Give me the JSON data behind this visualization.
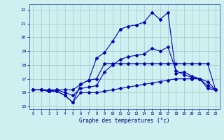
{
  "xlabel": "Graphe des températures (°c)",
  "bg_color": "#cff0f0",
  "line_color": "#0000bb",
  "xlim": [
    -0.5,
    23.5
  ],
  "ylim": [
    14.8,
    22.4
  ],
  "xticks": [
    0,
    1,
    2,
    3,
    4,
    5,
    6,
    7,
    8,
    9,
    10,
    11,
    12,
    13,
    14,
    15,
    16,
    17,
    18,
    19,
    20,
    21,
    22,
    23
  ],
  "yticks": [
    15,
    16,
    17,
    18,
    19,
    20,
    21,
    22
  ],
  "hours": [
    0,
    1,
    2,
    3,
    4,
    5,
    6,
    7,
    8,
    9,
    10,
    11,
    12,
    13,
    14,
    15,
    16,
    17,
    18,
    19,
    20,
    21,
    22,
    23
  ],
  "temp_main": [
    16.2,
    16.2,
    16.1,
    16.1,
    15.8,
    15.3,
    16.6,
    16.9,
    18.5,
    18.9,
    19.7,
    20.6,
    20.8,
    20.9,
    21.1,
    21.8,
    21.3,
    21.8,
    17.4,
    17.5,
    17.2,
    17.0,
    16.3,
    16.2
  ],
  "temp_max": [
    16.2,
    16.2,
    16.2,
    16.2,
    16.2,
    16.2,
    16.6,
    16.9,
    17.0,
    18.1,
    18.1,
    18.1,
    18.1,
    18.1,
    18.1,
    18.1,
    18.1,
    18.1,
    18.1,
    18.1,
    18.1,
    18.1,
    18.1,
    16.2
  ],
  "temp_min": [
    16.2,
    16.2,
    16.1,
    16.1,
    15.8,
    15.3,
    16.0,
    16.0,
    16.0,
    16.1,
    16.2,
    16.3,
    16.4,
    16.5,
    16.6,
    16.7,
    16.8,
    16.9,
    17.0,
    17.0,
    17.0,
    17.0,
    16.8,
    16.2
  ],
  "temp_avg": [
    16.2,
    16.2,
    16.1,
    16.2,
    16.0,
    15.8,
    16.3,
    16.4,
    16.5,
    17.5,
    18.0,
    18.4,
    18.6,
    18.7,
    18.8,
    19.2,
    19.0,
    19.3,
    17.6,
    17.3,
    17.1,
    17.0,
    16.5,
    16.2
  ]
}
